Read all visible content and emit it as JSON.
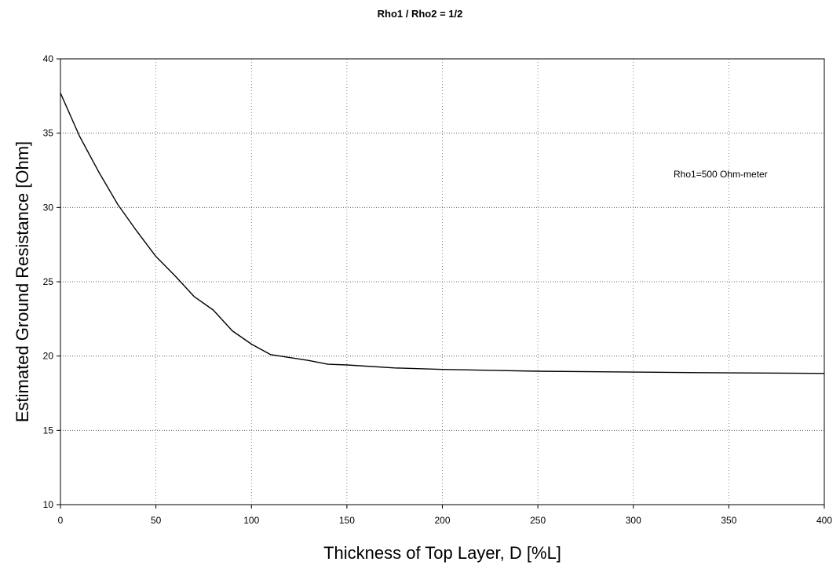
{
  "chart_data": {
    "type": "line",
    "title": "Rho1 / Rho2 = 1/2",
    "xlabel": "Thickness of Top Layer, D [%L]",
    "ylabel": "Estimated Ground Resistance [Ohm]",
    "xlim": [
      0,
      400
    ],
    "ylim": [
      10,
      40
    ],
    "xticks": [
      0,
      50,
      100,
      150,
      200,
      250,
      300,
      350,
      400
    ],
    "yticks": [
      10,
      15,
      20,
      25,
      30,
      35,
      40
    ],
    "grid": true,
    "annotation": "Rho1=500 Ohm-meter",
    "series": [
      {
        "x": [
          0,
          10,
          20,
          30,
          40,
          50,
          60,
          70,
          80,
          90,
          100,
          110,
          120,
          130,
          140,
          150,
          175,
          200,
          250,
          300,
          350,
          400
        ],
        "y": [
          37.7,
          34.8,
          32.4,
          30.2,
          28.4,
          26.7,
          25.4,
          24.0,
          23.1,
          21.7,
          20.8,
          20.1,
          19.9,
          19.7,
          19.45,
          19.4,
          19.2,
          19.1,
          18.98,
          18.92,
          18.87,
          18.83
        ]
      }
    ],
    "color": "#000000"
  }
}
